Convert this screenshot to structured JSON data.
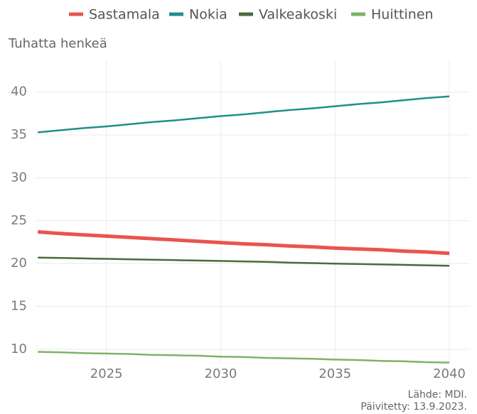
{
  "chart_data": {
    "type": "line",
    "y_label": "Tuhatta henkeä",
    "caption": [
      "Lähde: MDI.",
      "Päivitetty: 13.9.2023."
    ],
    "x": [
      2022,
      2023,
      2024,
      2025,
      2026,
      2027,
      2028,
      2029,
      2030,
      2031,
      2032,
      2033,
      2034,
      2035,
      2036,
      2037,
      2038,
      2039,
      2040
    ],
    "series": [
      {
        "name": "Sastamala",
        "color": "#e8554e",
        "width": 5,
        "values": [
          23.7,
          23.5,
          23.35,
          23.2,
          23.05,
          22.9,
          22.75,
          22.6,
          22.45,
          22.3,
          22.2,
          22.05,
          21.95,
          21.8,
          21.7,
          21.6,
          21.45,
          21.35,
          21.2
        ]
      },
      {
        "name": "Nokia",
        "color": "#1f8f8a",
        "width": 2.5,
        "values": [
          35.3,
          35.55,
          35.8,
          36.0,
          36.25,
          36.5,
          36.7,
          36.95,
          37.2,
          37.4,
          37.65,
          37.9,
          38.1,
          38.35,
          38.6,
          38.8,
          39.05,
          39.3,
          39.5
        ]
      },
      {
        "name": "Valkeakoski",
        "color": "#4a6b3a",
        "width": 2.5,
        "values": [
          20.7,
          20.65,
          20.6,
          20.55,
          20.5,
          20.45,
          20.4,
          20.35,
          20.3,
          20.25,
          20.2,
          20.1,
          20.05,
          20.0,
          19.95,
          19.9,
          19.85,
          19.8,
          19.75
        ]
      },
      {
        "name": "Huittinen",
        "color": "#7cb36a",
        "width": 2.5,
        "values": [
          9.7,
          9.65,
          9.55,
          9.5,
          9.45,
          9.35,
          9.3,
          9.25,
          9.15,
          9.1,
          9.0,
          8.95,
          8.9,
          8.8,
          8.75,
          8.65,
          8.6,
          8.5,
          8.45
        ]
      }
    ],
    "xlim": [
      2021.9,
      2040.9
    ],
    "xticks": [
      2025,
      2030,
      2035,
      2040
    ],
    "ylim": [
      8.5,
      43.7
    ],
    "yticks": [
      10,
      15,
      20,
      25,
      30,
      35,
      40
    ],
    "grid": true,
    "legend": "top"
  }
}
